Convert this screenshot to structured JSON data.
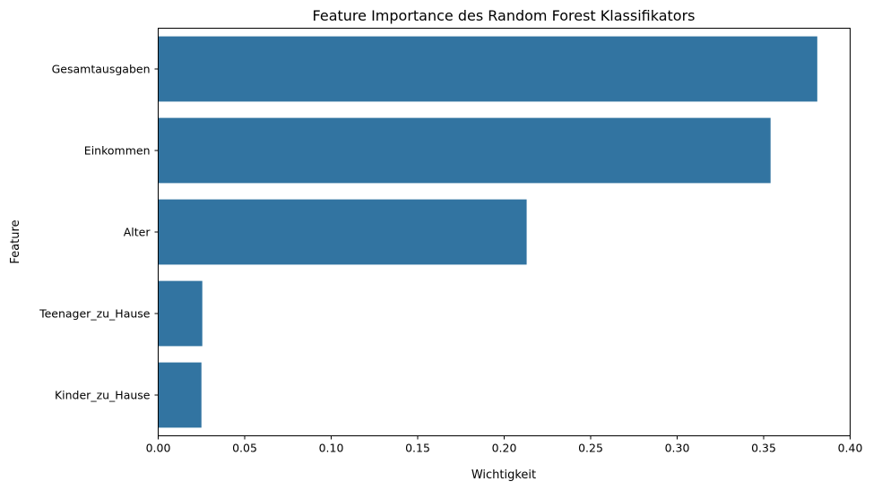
{
  "chart_data": {
    "type": "bar",
    "orientation": "horizontal",
    "title": "Feature Importance des Random Forest Klassifikators",
    "xlabel": "Wichtigkeit",
    "ylabel": "Feature",
    "categories": [
      "Gesamtausgaben",
      "Einkommen",
      "Alter",
      "Teenager_zu_Hause",
      "Kinder_zu_Hause"
    ],
    "values": [
      0.381,
      0.354,
      0.213,
      0.0255,
      0.025
    ],
    "xlim": [
      0,
      0.4
    ],
    "xticks": [
      "0.00",
      "0.05",
      "0.10",
      "0.15",
      "0.20",
      "0.25",
      "0.30",
      "0.35",
      "0.40"
    ],
    "grid": false,
    "bar_color": "#3274a1"
  }
}
